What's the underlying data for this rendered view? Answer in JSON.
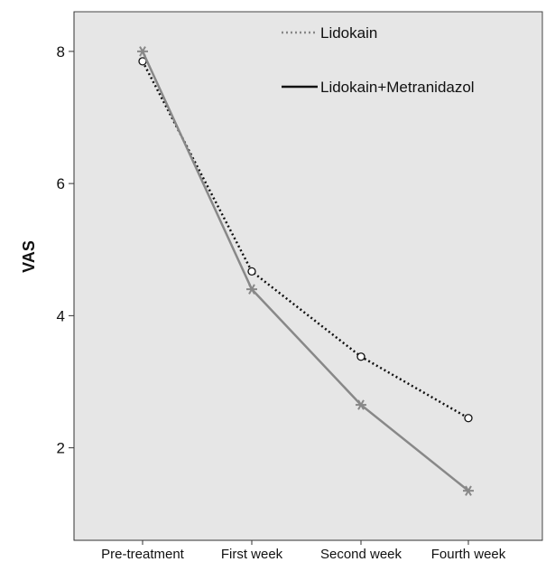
{
  "chart_data": {
    "type": "line",
    "title": "",
    "xlabel": "",
    "ylabel": "VAS",
    "categories": [
      "Pre-treatment",
      "First week",
      "Second week",
      "Fourth week"
    ],
    "ylim": [
      0.6,
      8.6
    ],
    "yticks": [
      2,
      4,
      6,
      8
    ],
    "grid": false,
    "legend_position": "top-right",
    "series": [
      {
        "name": "Lidokain",
        "values": [
          7.85,
          4.67,
          3.38,
          2.45
        ],
        "line_style": "dotted",
        "marker": "circle",
        "color": "#111111"
      },
      {
        "name": "Lidokain+Metranidazol",
        "values": [
          8.0,
          4.4,
          2.65,
          1.35
        ],
        "line_style": "solid",
        "marker": "asterisk",
        "color": "#888888"
      }
    ],
    "legend_line_colors": [
      "#888888",
      "#111111"
    ],
    "plot_background": "#e6e6e6"
  }
}
